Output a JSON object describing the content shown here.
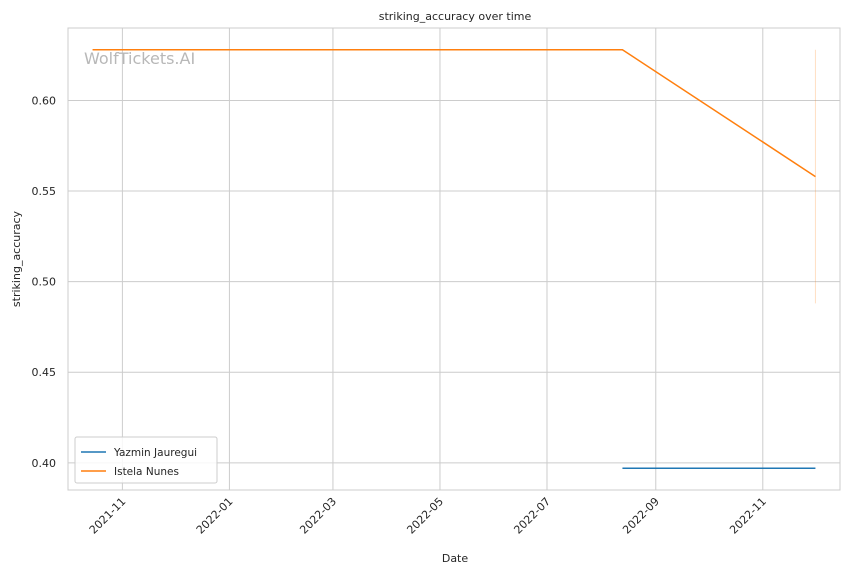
{
  "watermark": "WolfTickets.AI",
  "chart_data": {
    "type": "line",
    "title": "striking_accuracy over time",
    "xlabel": "Date",
    "ylabel": "striking_accuracy",
    "x_type": "date",
    "xlim": [
      "2021-10-01",
      "2022-12-15"
    ],
    "ylim": [
      0.385,
      0.64
    ],
    "x_ticks": [
      "2021-11",
      "2022-01",
      "2022-03",
      "2022-05",
      "2022-07",
      "2022-09",
      "2022-11"
    ],
    "y_ticks": [
      "0.40",
      "0.45",
      "0.50",
      "0.55",
      "0.60"
    ],
    "grid": true,
    "legend": {
      "location": "lower-left"
    },
    "series": [
      {
        "name": "Yazmin Jauregui",
        "color": "#1f77b4",
        "points": [
          {
            "x": "2022-08-13",
            "y": 0.397
          },
          {
            "x": "2022-12-01",
            "y": 0.397
          }
        ]
      },
      {
        "name": "Istela Nunes",
        "color": "#ff7f0e",
        "points": [
          {
            "x": "2021-10-15",
            "y": 0.628
          },
          {
            "x": "2022-08-13",
            "y": 0.628
          },
          {
            "x": "2022-12-01",
            "y": 0.558
          }
        ],
        "error_band": {
          "x": "2022-12-01",
          "low": 0.488,
          "high": 0.628
        }
      }
    ]
  }
}
